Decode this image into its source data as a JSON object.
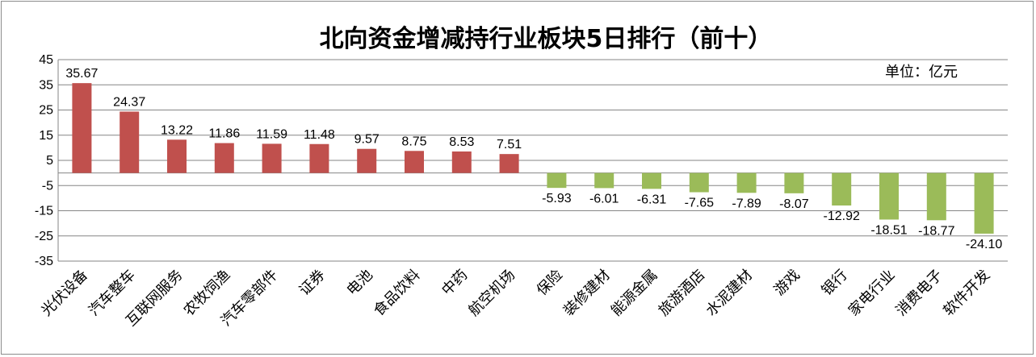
{
  "chart_data": {
    "type": "bar",
    "title": "北向资金增减持行业板块5日排行（前十）",
    "unit_label": "单位：亿元",
    "categories": [
      "光伏设备",
      "汽车整车",
      "互联网服务",
      "农牧饲渔",
      "汽车零部件",
      "证券",
      "电池",
      "食品饮料",
      "中药",
      "航空机场",
      "保险",
      "装修建材",
      "能源金属",
      "旅游酒店",
      "水泥建材",
      "游戏",
      "银行",
      "家电行业",
      "消费电子",
      "软件开发"
    ],
    "values": [
      35.67,
      24.37,
      13.22,
      11.86,
      11.59,
      11.48,
      9.57,
      8.75,
      8.53,
      7.51,
      -5.93,
      -6.01,
      -6.31,
      -7.65,
      -7.89,
      -8.07,
      -12.92,
      -18.51,
      -18.77,
      -24.1
    ],
    "data_labels": [
      "35.67",
      "24.37",
      "13.22",
      "11.86",
      "11.59",
      "11.48",
      "9.57",
      "8.75",
      "8.53",
      "7.51",
      "-5.93",
      "-6.01",
      "-6.31",
      "-7.65",
      "-7.89",
      "-8.07",
      "-12.92",
      "-18.51",
      "-18.77",
      "-24.10"
    ],
    "ylim": [
      -35,
      45
    ],
    "yticks": [
      45,
      35,
      25,
      15,
      5,
      -5,
      -15,
      -25,
      -35
    ],
    "grid": true,
    "colors": {
      "positive": "#c0504d",
      "negative": "#9bbb59",
      "grid": "#868686"
    }
  }
}
